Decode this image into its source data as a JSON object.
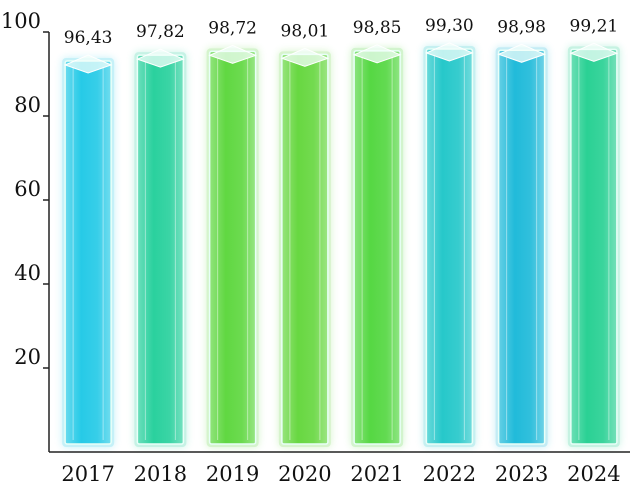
{
  "chart_data": {
    "type": "bar",
    "categories": [
      "2017",
      "2018",
      "2019",
      "2020",
      "2021",
      "2022",
      "2023",
      "2024"
    ],
    "values": [
      96.43,
      97.82,
      98.72,
      98.01,
      98.85,
      99.3,
      98.98,
      99.21
    ],
    "value_labels": [
      "96,43",
      "97,82",
      "98,72",
      "98,01",
      "98,85",
      "99,30",
      "98,98",
      "99,21"
    ],
    "title": "",
    "xlabel": "",
    "ylabel": "",
    "ylim": [
      0,
      100
    ],
    "yticks": [
      20,
      40,
      60,
      80,
      100
    ],
    "grid": false,
    "legend": "none",
    "bar_colors": [
      "#1ec8e6",
      "#22cf9a",
      "#5ad63a",
      "#62d63a",
      "#4fd63c",
      "#1ec6c8",
      "#18b8d8",
      "#22cf90"
    ]
  }
}
